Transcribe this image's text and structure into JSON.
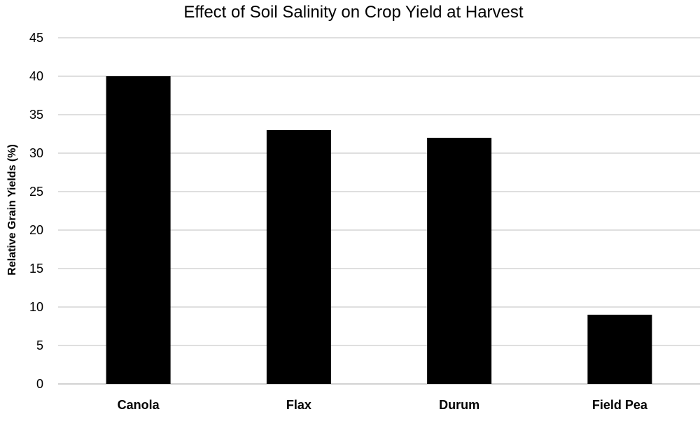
{
  "chart_data": {
    "type": "bar",
    "title": "Effect of Soil Salinity on Crop Yield at Harvest",
    "xlabel": "",
    "ylabel": "Relative Grain Yields (%)",
    "categories": [
      "Canola",
      "Flax",
      "Durum",
      "Field Pea"
    ],
    "values": [
      40,
      33,
      32,
      9
    ],
    "ylim": [
      0,
      45
    ],
    "yticks": [
      0,
      5,
      10,
      15,
      20,
      25,
      30,
      35,
      40,
      45
    ],
    "grid": true,
    "legend": "none",
    "bar_color": "#000000",
    "grid_color": "#bfbfbf"
  }
}
